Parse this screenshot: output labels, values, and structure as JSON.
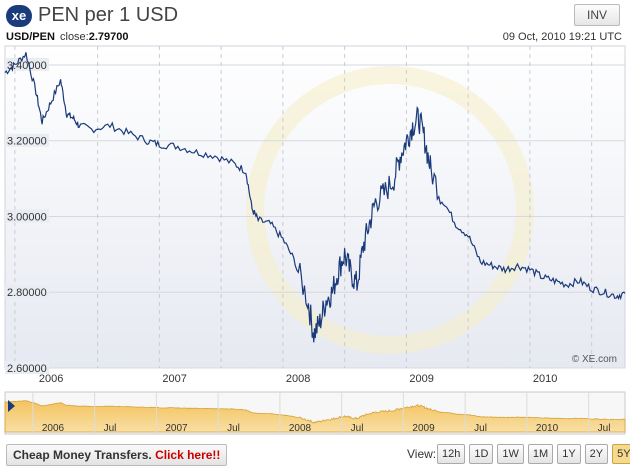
{
  "header": {
    "logo": "xe",
    "title": "PEN per 1 USD",
    "inv_label": "INV"
  },
  "info": {
    "pair": "USD/PEN",
    "close_label": "close:",
    "close_value": "2.79700",
    "datetime": "09 Oct, 2010 19:21 UTC"
  },
  "watermark": "© XE.com",
  "footer": {
    "cheap_label": "Cheap Money Transfers.",
    "click_label": "Click here!!",
    "view_label": "View:",
    "ranges": [
      "12h",
      "1D",
      "1W",
      "1M",
      "1Y",
      "2Y",
      "5Y"
    ],
    "active_range": "5Y"
  },
  "chart_data": {
    "type": "line",
    "title": "PEN per 1 USD",
    "ylim": [
      2.6,
      3.45
    ],
    "y_ticks": [
      "2.60000",
      "2.80000",
      "3.00000",
      "3.20000",
      "3.40000"
    ],
    "x_ticks": [
      "2006",
      "2007",
      "2008",
      "2009",
      "2010"
    ],
    "navigator_ticks": [
      "2006",
      "Jul",
      "2007",
      "Jul",
      "2008",
      "Jul",
      "2009",
      "Jul",
      "2010",
      "Jul"
    ],
    "series": [
      {
        "values": [
          {
            "x": 2005.75,
            "y": 3.38
          },
          {
            "x": 2005.83,
            "y": 3.4
          },
          {
            "x": 2005.92,
            "y": 3.43
          },
          {
            "x": 2006.0,
            "y": 3.33
          },
          {
            "x": 2006.05,
            "y": 3.25
          },
          {
            "x": 2006.12,
            "y": 3.3
          },
          {
            "x": 2006.2,
            "y": 3.36
          },
          {
            "x": 2006.25,
            "y": 3.27
          },
          {
            "x": 2006.3,
            "y": 3.26
          },
          {
            "x": 2006.35,
            "y": 3.24
          },
          {
            "x": 2006.45,
            "y": 3.23
          },
          {
            "x": 2006.6,
            "y": 3.24
          },
          {
            "x": 2006.75,
            "y": 3.22
          },
          {
            "x": 2006.9,
            "y": 3.2
          },
          {
            "x": 2007.0,
            "y": 3.19
          },
          {
            "x": 2007.15,
            "y": 3.185
          },
          {
            "x": 2007.3,
            "y": 3.17
          },
          {
            "x": 2007.45,
            "y": 3.16
          },
          {
            "x": 2007.6,
            "y": 3.14
          },
          {
            "x": 2007.7,
            "y": 3.12
          },
          {
            "x": 2007.75,
            "y": 3.02
          },
          {
            "x": 2007.8,
            "y": 2.99
          },
          {
            "x": 2007.9,
            "y": 2.98
          },
          {
            "x": 2008.0,
            "y": 2.94
          },
          {
            "x": 2008.1,
            "y": 2.88
          },
          {
            "x": 2008.2,
            "y": 2.78
          },
          {
            "x": 2008.25,
            "y": 2.69
          },
          {
            "x": 2008.3,
            "y": 2.72
          },
          {
            "x": 2008.35,
            "y": 2.78
          },
          {
            "x": 2008.4,
            "y": 2.8
          },
          {
            "x": 2008.45,
            "y": 2.86
          },
          {
            "x": 2008.5,
            "y": 2.9
          },
          {
            "x": 2008.55,
            "y": 2.85
          },
          {
            "x": 2008.6,
            "y": 2.82
          },
          {
            "x": 2008.65,
            "y": 2.92
          },
          {
            "x": 2008.7,
            "y": 2.98
          },
          {
            "x": 2008.75,
            "y": 3.04
          },
          {
            "x": 2008.82,
            "y": 3.06
          },
          {
            "x": 2008.9,
            "y": 3.1
          },
          {
            "x": 2008.95,
            "y": 3.16
          },
          {
            "x": 2009.0,
            "y": 3.2
          },
          {
            "x": 2009.05,
            "y": 3.24
          },
          {
            "x": 2009.1,
            "y": 3.26
          },
          {
            "x": 2009.15,
            "y": 3.2
          },
          {
            "x": 2009.2,
            "y": 3.12
          },
          {
            "x": 2009.3,
            "y": 3.04
          },
          {
            "x": 2009.4,
            "y": 2.98
          },
          {
            "x": 2009.5,
            "y": 2.95
          },
          {
            "x": 2009.6,
            "y": 2.88
          },
          {
            "x": 2009.7,
            "y": 2.87
          },
          {
            "x": 2009.8,
            "y": 2.86
          },
          {
            "x": 2009.9,
            "y": 2.87
          },
          {
            "x": 2010.0,
            "y": 2.86
          },
          {
            "x": 2010.1,
            "y": 2.84
          },
          {
            "x": 2010.2,
            "y": 2.83
          },
          {
            "x": 2010.3,
            "y": 2.82
          },
          {
            "x": 2010.4,
            "y": 2.83
          },
          {
            "x": 2010.5,
            "y": 2.81
          },
          {
            "x": 2010.6,
            "y": 2.8
          },
          {
            "x": 2010.7,
            "y": 2.79
          },
          {
            "x": 2010.77,
            "y": 2.797
          }
        ]
      }
    ],
    "grid": true,
    "navigator": true
  }
}
